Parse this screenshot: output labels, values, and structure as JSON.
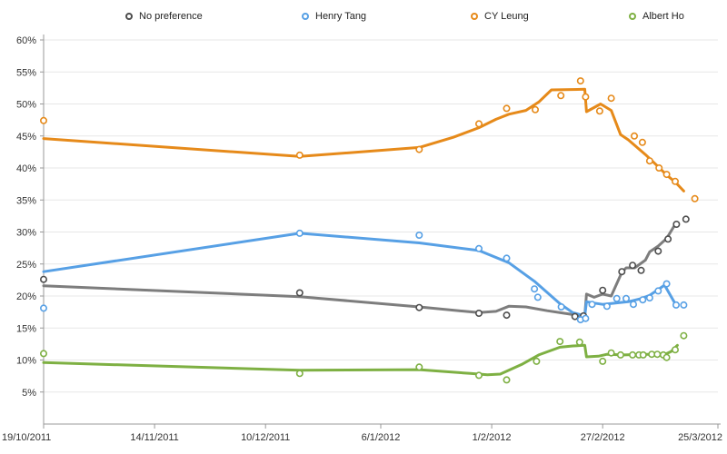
{
  "chart_data": {
    "type": "line",
    "title": "",
    "xlabel": "",
    "ylabel": "",
    "grid": "horizontal",
    "legend_position": "top",
    "x_axis": {
      "unit": "days-since-first-tick",
      "domain_days": [
        0,
        158
      ],
      "ticks": [
        {
          "day": 0,
          "label": "19/10/2011"
        },
        {
          "day": 26,
          "label": "14/11/2011"
        },
        {
          "day": 52,
          "label": "10/12/2011"
        },
        {
          "day": 79,
          "label": "6/1/2012"
        },
        {
          "day": 105,
          "label": "1/2/2012"
        },
        {
          "day": 131,
          "label": "27/2/2012"
        },
        {
          "day": 158,
          "label": "25/3/2012"
        }
      ]
    },
    "y_axis": {
      "min": 0,
      "max": 60,
      "ticks": [
        {
          "v": 5,
          "label": "5%"
        },
        {
          "v": 10,
          "label": "10%"
        },
        {
          "v": 15,
          "label": "15%"
        },
        {
          "v": 20,
          "label": "20%"
        },
        {
          "v": 25,
          "label": "25%"
        },
        {
          "v": 30,
          "label": "30%"
        },
        {
          "v": 35,
          "label": "35%"
        },
        {
          "v": 40,
          "label": "40%"
        },
        {
          "v": 45,
          "label": "45%"
        },
        {
          "v": 50,
          "label": "50%"
        },
        {
          "v": 55,
          "label": "55%"
        },
        {
          "v": 60,
          "label": "60%"
        }
      ]
    },
    "series": [
      {
        "name": "No preference",
        "color": "#7d7d7d",
        "point_color": "#4d4d4d",
        "line": [
          [
            0,
            21.6
          ],
          [
            60,
            19.9
          ],
          [
            88,
            18.3
          ],
          [
            102,
            17.4
          ],
          [
            106,
            17.6
          ],
          [
            109,
            18.4
          ],
          [
            113,
            18.3
          ],
          [
            118,
            17.7
          ],
          [
            122,
            17.3
          ],
          [
            125,
            17.0
          ],
          [
            126.8,
            16.9
          ],
          [
            127.2,
            20.3
          ],
          [
            129,
            19.8
          ],
          [
            131,
            20.3
          ],
          [
            133,
            20.0
          ],
          [
            135.5,
            23.7
          ],
          [
            136.5,
            24.4
          ],
          [
            138.5,
            24.4
          ],
          [
            141,
            25.6
          ],
          [
            142,
            26.9
          ],
          [
            144,
            27.8
          ],
          [
            146,
            29.0
          ],
          [
            148,
            31.2
          ]
        ],
        "points": [
          [
            0,
            22.6
          ],
          [
            60,
            20.5
          ],
          [
            88,
            18.2
          ],
          [
            102,
            17.3
          ],
          [
            108.5,
            17.0
          ],
          [
            124.5,
            16.8
          ],
          [
            126.5,
            16.9
          ],
          [
            131,
            20.9
          ],
          [
            135.5,
            23.8
          ],
          [
            138,
            24.8
          ],
          [
            140,
            24.0
          ],
          [
            144,
            27.0
          ],
          [
            146.3,
            28.9
          ],
          [
            148.3,
            31.2
          ],
          [
            150.5,
            32.0
          ]
        ]
      },
      {
        "name": "Henry Tang",
        "color": "#57a0e5",
        "point_color": "#57a0e5",
        "line": [
          [
            0,
            23.8
          ],
          [
            60,
            29.8
          ],
          [
            88,
            28.3
          ],
          [
            102,
            27.1
          ],
          [
            109,
            25.2
          ],
          [
            115,
            22.3
          ],
          [
            121,
            18.8
          ],
          [
            124,
            17.4
          ],
          [
            126.8,
            16.9
          ],
          [
            127.2,
            19.1
          ],
          [
            129,
            18.9
          ],
          [
            131,
            18.7
          ],
          [
            134,
            18.9
          ],
          [
            137,
            19.1
          ],
          [
            140,
            19.6
          ],
          [
            142,
            20.1
          ],
          [
            144,
            21.0
          ],
          [
            145.5,
            21.7
          ],
          [
            148,
            18.8
          ]
        ],
        "points": [
          [
            0,
            18.1
          ],
          [
            60,
            29.8
          ],
          [
            88,
            29.5
          ],
          [
            102,
            27.4
          ],
          [
            108.5,
            25.9
          ],
          [
            115,
            21.1
          ],
          [
            115.8,
            19.8
          ],
          [
            121.3,
            18.3
          ],
          [
            125.8,
            16.3
          ],
          [
            127,
            16.5
          ],
          [
            128.5,
            18.7
          ],
          [
            132,
            18.4
          ],
          [
            134.3,
            19.6
          ],
          [
            136.5,
            19.6
          ],
          [
            138.2,
            18.7
          ],
          [
            140.4,
            19.4
          ],
          [
            142,
            19.7
          ],
          [
            144,
            20.8
          ],
          [
            146,
            21.9
          ],
          [
            148.2,
            18.6
          ],
          [
            150,
            18.6
          ]
        ]
      },
      {
        "name": "CY Leung",
        "color": "#e68a1a",
        "point_color": "#e68a1a",
        "line": [
          [
            0,
            44.6
          ],
          [
            60,
            41.8
          ],
          [
            88,
            43.2
          ],
          [
            96,
            44.8
          ],
          [
            102,
            46.3
          ],
          [
            106,
            47.6
          ],
          [
            109,
            48.4
          ],
          [
            113,
            49.0
          ],
          [
            116,
            50.3
          ],
          [
            119,
            52.2
          ],
          [
            126.8,
            52.3
          ],
          [
            127.2,
            48.8
          ],
          [
            130.5,
            50.0
          ],
          [
            133,
            49.0
          ],
          [
            135.2,
            45.2
          ],
          [
            137,
            44.4
          ],
          [
            141,
            42.1
          ],
          [
            144,
            40.2
          ],
          [
            146,
            38.9
          ],
          [
            148,
            37.8
          ],
          [
            150,
            36.4
          ]
        ],
        "points": [
          [
            0,
            47.4
          ],
          [
            60,
            42.0
          ],
          [
            88,
            42.9
          ],
          [
            102,
            46.9
          ],
          [
            108.5,
            49.3
          ],
          [
            115.2,
            49.1
          ],
          [
            121.2,
            51.3
          ],
          [
            125.8,
            53.6
          ],
          [
            127,
            51.1
          ],
          [
            130.3,
            48.9
          ],
          [
            133,
            50.9
          ],
          [
            138.4,
            45.0
          ],
          [
            140.3,
            44.0
          ],
          [
            142,
            41.1
          ],
          [
            144.2,
            40.0
          ],
          [
            146,
            39.0
          ],
          [
            148,
            37.9
          ],
          [
            152.6,
            35.2
          ]
        ]
      },
      {
        "name": "Albert Ho",
        "color": "#7eb043",
        "point_color": "#7eb043",
        "line": [
          [
            0,
            9.6
          ],
          [
            60,
            8.4
          ],
          [
            88,
            8.5
          ],
          [
            100,
            7.9
          ],
          [
            104,
            7.7
          ],
          [
            107,
            7.8
          ],
          [
            112,
            9.3
          ],
          [
            116,
            10.8
          ],
          [
            121,
            12.0
          ],
          [
            124,
            12.2
          ],
          [
            126.8,
            12.3
          ],
          [
            127.2,
            10.5
          ],
          [
            130,
            10.6
          ],
          [
            132,
            10.9
          ],
          [
            136,
            10.8
          ],
          [
            140,
            10.9
          ],
          [
            144,
            10.9
          ],
          [
            146,
            11.0
          ],
          [
            147,
            11.3
          ],
          [
            148.5,
            12.3
          ]
        ],
        "points": [
          [
            0,
            11.0
          ],
          [
            60,
            7.9
          ],
          [
            88,
            8.9
          ],
          [
            102,
            7.6
          ],
          [
            108.5,
            6.9
          ],
          [
            115.5,
            9.8
          ],
          [
            121,
            12.9
          ],
          [
            125.6,
            12.8
          ],
          [
            131,
            9.8
          ],
          [
            133,
            11.1
          ],
          [
            135.2,
            10.8
          ],
          [
            138,
            10.8
          ],
          [
            139.5,
            10.8
          ],
          [
            140.5,
            10.8
          ],
          [
            142.5,
            10.9
          ],
          [
            143.8,
            10.9
          ],
          [
            145.2,
            10.8
          ],
          [
            146,
            10.4
          ],
          [
            148,
            11.6
          ],
          [
            150,
            13.8
          ]
        ]
      }
    ],
    "colors": {
      "grid": "#e7e7e7",
      "axis": "#999999",
      "tick_label": "#333333"
    }
  }
}
